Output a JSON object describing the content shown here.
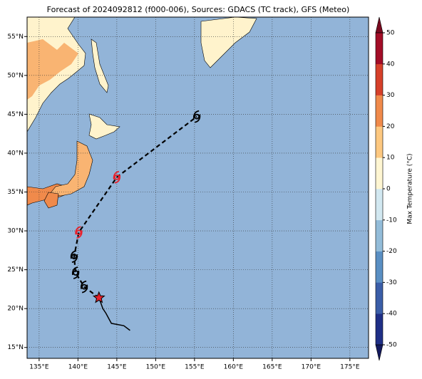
{
  "chart_data": {
    "type": "map",
    "title": "Forecast of 2024092812 (f000-006), Sources: GDACS (TC track), GFS (Meteo)",
    "xlim": [
      133.45,
      177.4
    ],
    "ylim": [
      13.6,
      57.5
    ],
    "xticks": [
      {
        "value": 135,
        "label": "135°E"
      },
      {
        "value": 140,
        "label": "140°E"
      },
      {
        "value": 145,
        "label": "145°E"
      },
      {
        "value": 150,
        "label": "150°E"
      },
      {
        "value": 155,
        "label": "155°E"
      },
      {
        "value": 160,
        "label": "160°E"
      },
      {
        "value": 165,
        "label": "165°E"
      },
      {
        "value": 170,
        "label": "170°E"
      },
      {
        "value": 175,
        "label": "175°E"
      }
    ],
    "yticks": [
      {
        "value": 15,
        "label": "15°N"
      },
      {
        "value": 20,
        "label": "20°N"
      },
      {
        "value": 25,
        "label": "25°N"
      },
      {
        "value": 30,
        "label": "30°N"
      },
      {
        "value": 35,
        "label": "35°N"
      },
      {
        "value": 40,
        "label": "40°N"
      },
      {
        "value": 45,
        "label": "45°N"
      },
      {
        "value": 50,
        "label": "50°N"
      },
      {
        "value": 55,
        "label": "55°N"
      }
    ],
    "grid": true,
    "past_track": {
      "lon": [
        146.7,
        145.9,
        144.3,
        143.6,
        143.2,
        142.7
      ],
      "lat": [
        17.2,
        17.8,
        18.1,
        19.4,
        20.0,
        21.4
      ]
    },
    "current": {
      "lon": 142.7,
      "lat": 21.4,
      "color": "#e8202a"
    },
    "forecast": {
      "lon": [
        140.8,
        139.7,
        139.5,
        140.1,
        145.0,
        155.3
      ],
      "lat": [
        22.8,
        24.6,
        26.7,
        29.8,
        36.9,
        44.7
      ],
      "colors": [
        "#000000",
        "#000000",
        "#000000",
        "#e8202a",
        "#e8202a",
        "#000000"
      ]
    },
    "colorbar": {
      "label": "Max Temperature (°C)",
      "lim": [
        -50,
        50
      ],
      "ticks": [
        -50,
        -40,
        -30,
        -20,
        -10,
        0,
        10,
        20,
        30,
        40,
        50
      ],
      "colors": [
        "#1f2f86",
        "#3b5ea8",
        "#5a8fc3",
        "#93bcd9",
        "#d2e8f1",
        "#fff6d2",
        "#fdc880",
        "#f08a4b",
        "#d6402a",
        "#a30d27"
      ],
      "under": "#141a5e",
      "over": "#7a0a20"
    }
  }
}
